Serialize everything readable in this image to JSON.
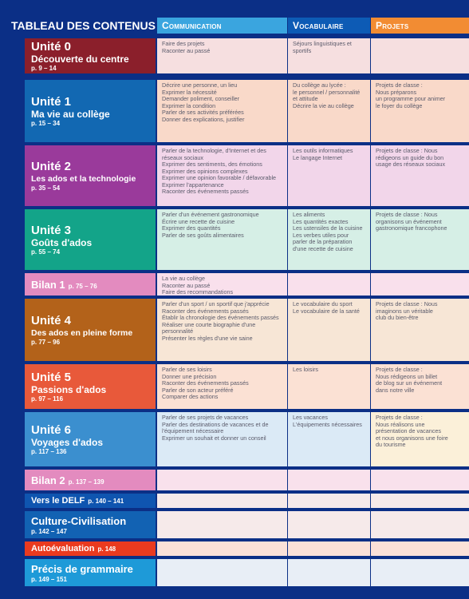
{
  "title": "TABLEAU DES CONTENUS",
  "columns": {
    "communication": "Communication",
    "vocabulaire": "Vocabulaire",
    "projets": "Projets"
  },
  "colors": {
    "background": "#0b2f86",
    "header_comm": "#3aa5df",
    "header_voc": "#0d5bb5",
    "header_proj": "#f28c33"
  },
  "rows": [
    {
      "unit": "Unité 0",
      "name": "Découverte du centre",
      "pages": "p. 9 – 14",
      "color": "#8b1f2b",
      "communication": [
        "Faire des projets",
        "Raconter au passé"
      ],
      "vocabulaire": [
        "Séjours linguistiques et",
        "sportifs"
      ],
      "projets": []
    },
    {
      "unit": "Unité 1",
      "name": "Ma vie au collège",
      "pages": "p. 15 – 34",
      "color": "#1268b2",
      "communication": [
        "Décrire une personne, un lieu",
        "Exprimer la nécessité",
        "Demander poliment, conseiller",
        "Exprimer la condition",
        "Parler de ses activités préférées",
        "Donner des explications, justifier"
      ],
      "vocabulaire": [
        "Du collège au lycée :",
        "le personnel / personnalité",
        "et attitude",
        "Décrire la vie au collège"
      ],
      "projets": [
        "Projets de classe :",
        "Nous préparons",
        "un programme pour animer",
        "le foyer du collège"
      ]
    },
    {
      "unit": "Unité 2",
      "name": "Les ados et la technologie",
      "pages": "p. 35 – 54",
      "color": "#9a3a9b",
      "communication": [
        "Parler de la technologie, d'Internet et des",
        "réseaux sociaux",
        "Exprimer des sentiments, des émotions",
        "Exprimer des opinions complexes",
        "Exprimer une opinion favorable / défavorable",
        "Exprimer l'appartenance",
        "Raconter des événements passés"
      ],
      "vocabulaire": [
        "Les outils informatiques",
        "Le langage Internet"
      ],
      "projets": [
        "Projets de classe : Nous",
        "rédigeons un guide du bon",
        "usage des réseaux sociaux"
      ]
    },
    {
      "unit": "Unité 3",
      "name": "Goûts d'ados",
      "pages": "p. 55 – 74",
      "color": "#13a489",
      "communication": [
        "Parler d'un événement gastronomique",
        "Écrire une recette de cuisine",
        "Exprimer des quantités",
        "Parler de ses goûts alimentaires"
      ],
      "vocabulaire": [
        "Les aliments",
        "Les quantités exactes",
        "Les ustensiles de la cuisine",
        "Les verbes utiles pour",
        "parler de la préparation",
        "d'une recette de cuisine"
      ],
      "projets": [
        "Projets de classe : Nous",
        "organisons un événement",
        "gastronomique francophone"
      ]
    },
    {
      "unit": "Bilan 1",
      "name": "",
      "pages": "p. 75 – 76",
      "color": "#e38bbf",
      "communication": [
        "La vie au collège",
        "Raconter au passé",
        "Faire des recommandations"
      ],
      "vocabulaire": [],
      "projets": []
    },
    {
      "unit": "Unité 4",
      "name": "Des ados en pleine forme",
      "pages": "p. 77 – 96",
      "color": "#b3621a",
      "communication": [
        "Parler d'un sport / un sportif que j'apprécie",
        "Raconter des événements passés",
        "Établir la chronologie des événements passés",
        "Réaliser une courte biographie d'une",
        "personnalité",
        "Présenter les règles d'une vie saine"
      ],
      "vocabulaire": [
        "Le vocabulaire du sport",
        "Le vocabulaire de la santé"
      ],
      "projets": [
        "Projets de classe : Nous",
        "imaginons un véritable",
        "club du bien-être"
      ]
    },
    {
      "unit": "Unité 5",
      "name": "Passions d'ados",
      "pages": "p. 97 – 116",
      "color": "#e8593a",
      "communication": [
        "Parler de ses loisirs",
        "Donner une précision",
        "Raconter des événements passés",
        "Parler de son acteur préféré",
        "Comparer des actions"
      ],
      "vocabulaire": [
        "Les loisirs"
      ],
      "projets": [
        "Projets de classe :",
        "Nous rédigeons un billet",
        "de blog sur un événement",
        "dans notre ville"
      ]
    },
    {
      "unit": "Unité 6",
      "name": "Voyages d'ados",
      "pages": "p. 117 – 136",
      "color": "#3b8fcf",
      "communication": [
        "Parler de ses projets de vacances",
        "Parler des destinations de vacances et de",
        "l'équipement nécessaire",
        "Exprimer un souhait et donner un conseil"
      ],
      "vocabulaire": [
        "Les vacances",
        "L'équipements nécessaires"
      ],
      "projets": [
        "Projets de classe :",
        "Nous réalisons une",
        "présentation de vacances",
        "et nous organisons une foire",
        "du tourisme"
      ]
    },
    {
      "unit": "Bilan 2",
      "name": "",
      "pages": "p. 137 – 139",
      "color": "#e38bbf",
      "communication": [],
      "vocabulaire": [],
      "projets": []
    },
    {
      "unit": "Vers le DELF",
      "name": "",
      "pages": "p. 140 – 141",
      "color": "#0f55b0",
      "communication": [],
      "vocabulaire": [],
      "projets": []
    },
    {
      "unit": "Culture-Civilisation",
      "name": "",
      "pages": "p. 142 – 147",
      "color": "#1262b3",
      "communication": [],
      "vocabulaire": [],
      "projets": []
    },
    {
      "unit": "Autoévaluation",
      "name": "",
      "pages": "p. 148",
      "color": "#ea3a1f",
      "communication": [],
      "vocabulaire": [],
      "projets": []
    },
    {
      "unit": "Précis de grammaire",
      "name": "",
      "pages": "p. 149 – 151",
      "color": "#1e9ad8",
      "communication": [],
      "vocabulaire": [],
      "projets": []
    }
  ]
}
